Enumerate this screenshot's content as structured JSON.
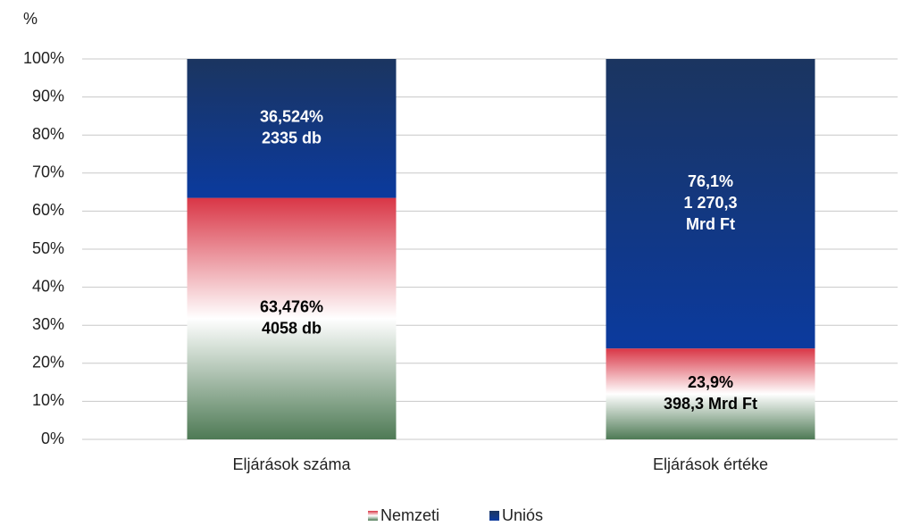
{
  "chart_data": {
    "type": "stacked_bar",
    "y_label": "%",
    "categories": [
      "Eljárások száma",
      "Eljárások értéke"
    ],
    "series": [
      {
        "name": "Nemzeti",
        "colors": [
          "#d93646",
          "#ffffff",
          "#4e7a55"
        ],
        "label_color": "#000000",
        "values": [
          63.476,
          23.9
        ],
        "value_labels": [
          [
            "63,476%",
            "4058 db"
          ],
          [
            "23,9%",
            "398,3 Mrd Ft"
          ]
        ]
      },
      {
        "name": "Uniós",
        "colors": [
          "#1b3560",
          "#0b3a9e"
        ],
        "label_color": "#ffffff",
        "values": [
          36.524,
          76.1
        ],
        "value_labels": [
          [
            "36,524%",
            "2335 db"
          ],
          [
            "76,1%",
            "1 270,3",
            "Mrd Ft"
          ]
        ]
      }
    ],
    "ylim": [
      0,
      100
    ],
    "yticks": [
      {
        "value": 0,
        "label": "0%"
      },
      {
        "value": 10,
        "label": "10%"
      },
      {
        "value": 20,
        "label": "20%"
      },
      {
        "value": 30,
        "label": "30%"
      },
      {
        "value": 40,
        "label": "40%"
      },
      {
        "value": 50,
        "label": "50%"
      },
      {
        "value": 60,
        "label": "60%"
      },
      {
        "value": 70,
        "label": "70%"
      },
      {
        "value": 80,
        "label": "80%"
      },
      {
        "value": 90,
        "label": "90%"
      },
      {
        "value": 100,
        "label": "100%"
      }
    ],
    "grid": true,
    "legend": "bottom"
  }
}
